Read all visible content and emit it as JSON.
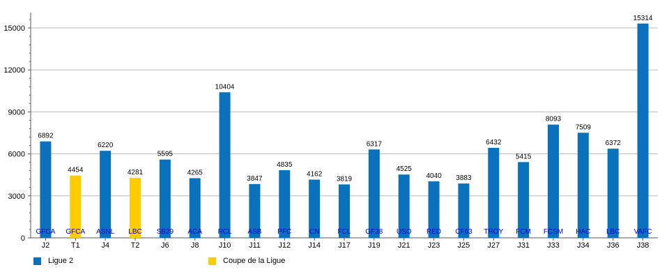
{
  "chart_data": {
    "type": "bar",
    "categories": [
      "J2",
      "T1",
      "J4",
      "T2",
      "J6",
      "J8",
      "J10",
      "J11",
      "J12",
      "J14",
      "J17",
      "J19",
      "J21",
      "J23",
      "J25",
      "J27",
      "J31",
      "J33",
      "J34",
      "J36",
      "J38"
    ],
    "opponents": [
      "GFCA",
      "GFCA",
      "ASNL",
      "LBC",
      "SB29",
      "ACA",
      "RCL",
      "ASB",
      "PFC",
      "CN",
      "FCL",
      "GF38",
      "USO",
      "RED",
      "CF63",
      "TROY",
      "FCM",
      "FCSM",
      "HAC",
      "LBC",
      "VAFC"
    ],
    "values": [
      6892,
      4454,
      6220,
      4281,
      5595,
      4265,
      10404,
      3847,
      4835,
      4162,
      3819,
      6317,
      4525,
      4040,
      3883,
      6432,
      5415,
      8093,
      7509,
      6372,
      15314
    ],
    "competition": [
      "Ligue 2",
      "Coupe de la Ligue",
      "Ligue 2",
      "Coupe de la Ligue",
      "Ligue 2",
      "Ligue 2",
      "Ligue 2",
      "Ligue 2",
      "Ligue 2",
      "Ligue 2",
      "Ligue 2",
      "Ligue 2",
      "Ligue 2",
      "Ligue 2",
      "Ligue 2",
      "Ligue 2",
      "Ligue 2",
      "Ligue 2",
      "Ligue 2",
      "Ligue 2",
      "Ligue 2"
    ],
    "ylim": [
      0,
      15900
    ],
    "yticks": [
      0,
      3000,
      6000,
      9000,
      12000,
      15000
    ],
    "grid": true,
    "legend_position": "bottom-left",
    "series": [
      {
        "name": "Ligue 2",
        "color": "#0a72bd"
      },
      {
        "name": "Coupe de la Ligue",
        "color": "#ffcc00"
      }
    ],
    "label_color": "#0000cc"
  }
}
